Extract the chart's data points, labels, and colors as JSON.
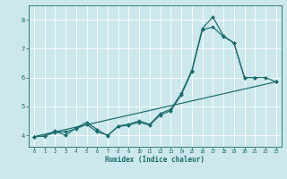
{
  "xlabel": "Humidex (Indice chaleur)",
  "xlim": [
    -0.5,
    23.5
  ],
  "ylim": [
    3.6,
    8.5
  ],
  "bg_color": "#cce8ec",
  "line_color": "#1a6b6b",
  "grid_color": "#ffffff",
  "x_ticks": [
    0,
    1,
    2,
    3,
    4,
    5,
    6,
    7,
    8,
    9,
    10,
    11,
    12,
    13,
    14,
    15,
    16,
    17,
    18,
    19,
    20,
    21,
    22,
    23
  ],
  "y_ticks": [
    4,
    5,
    6,
    7,
    8
  ],
  "series": [
    {
      "x": [
        0,
        1,
        2,
        3,
        4,
        5,
        6,
        7,
        8,
        9,
        10,
        11,
        12,
        13,
        14,
        15,
        16,
        17,
        18,
        19,
        20,
        21
      ],
      "y": [
        3.95,
        3.97,
        4.15,
        4.0,
        4.25,
        4.45,
        4.2,
        3.98,
        4.32,
        4.38,
        4.5,
        4.38,
        4.75,
        4.9,
        5.45,
        6.25,
        7.7,
        8.1,
        7.45,
        7.2,
        6.0,
        6.0
      ]
    },
    {
      "x": [
        0,
        1,
        2,
        3,
        4,
        5,
        6,
        7,
        8,
        9,
        10,
        11,
        12,
        13,
        14,
        15,
        16,
        17,
        18,
        19,
        20,
        21,
        22,
        23
      ],
      "y": [
        3.95,
        3.97,
        4.1,
        4.12,
        4.22,
        4.38,
        4.12,
        4.0,
        4.3,
        4.35,
        4.45,
        4.35,
        4.7,
        4.85,
        5.4,
        6.2,
        7.65,
        7.75,
        7.42,
        7.2,
        6.0,
        6.0,
        6.0,
        5.85
      ]
    },
    {
      "x": [
        0,
        23
      ],
      "y": [
        3.95,
        5.85
      ]
    }
  ],
  "marker": "D",
  "markersize": 2.0,
  "linewidth": 0.85
}
